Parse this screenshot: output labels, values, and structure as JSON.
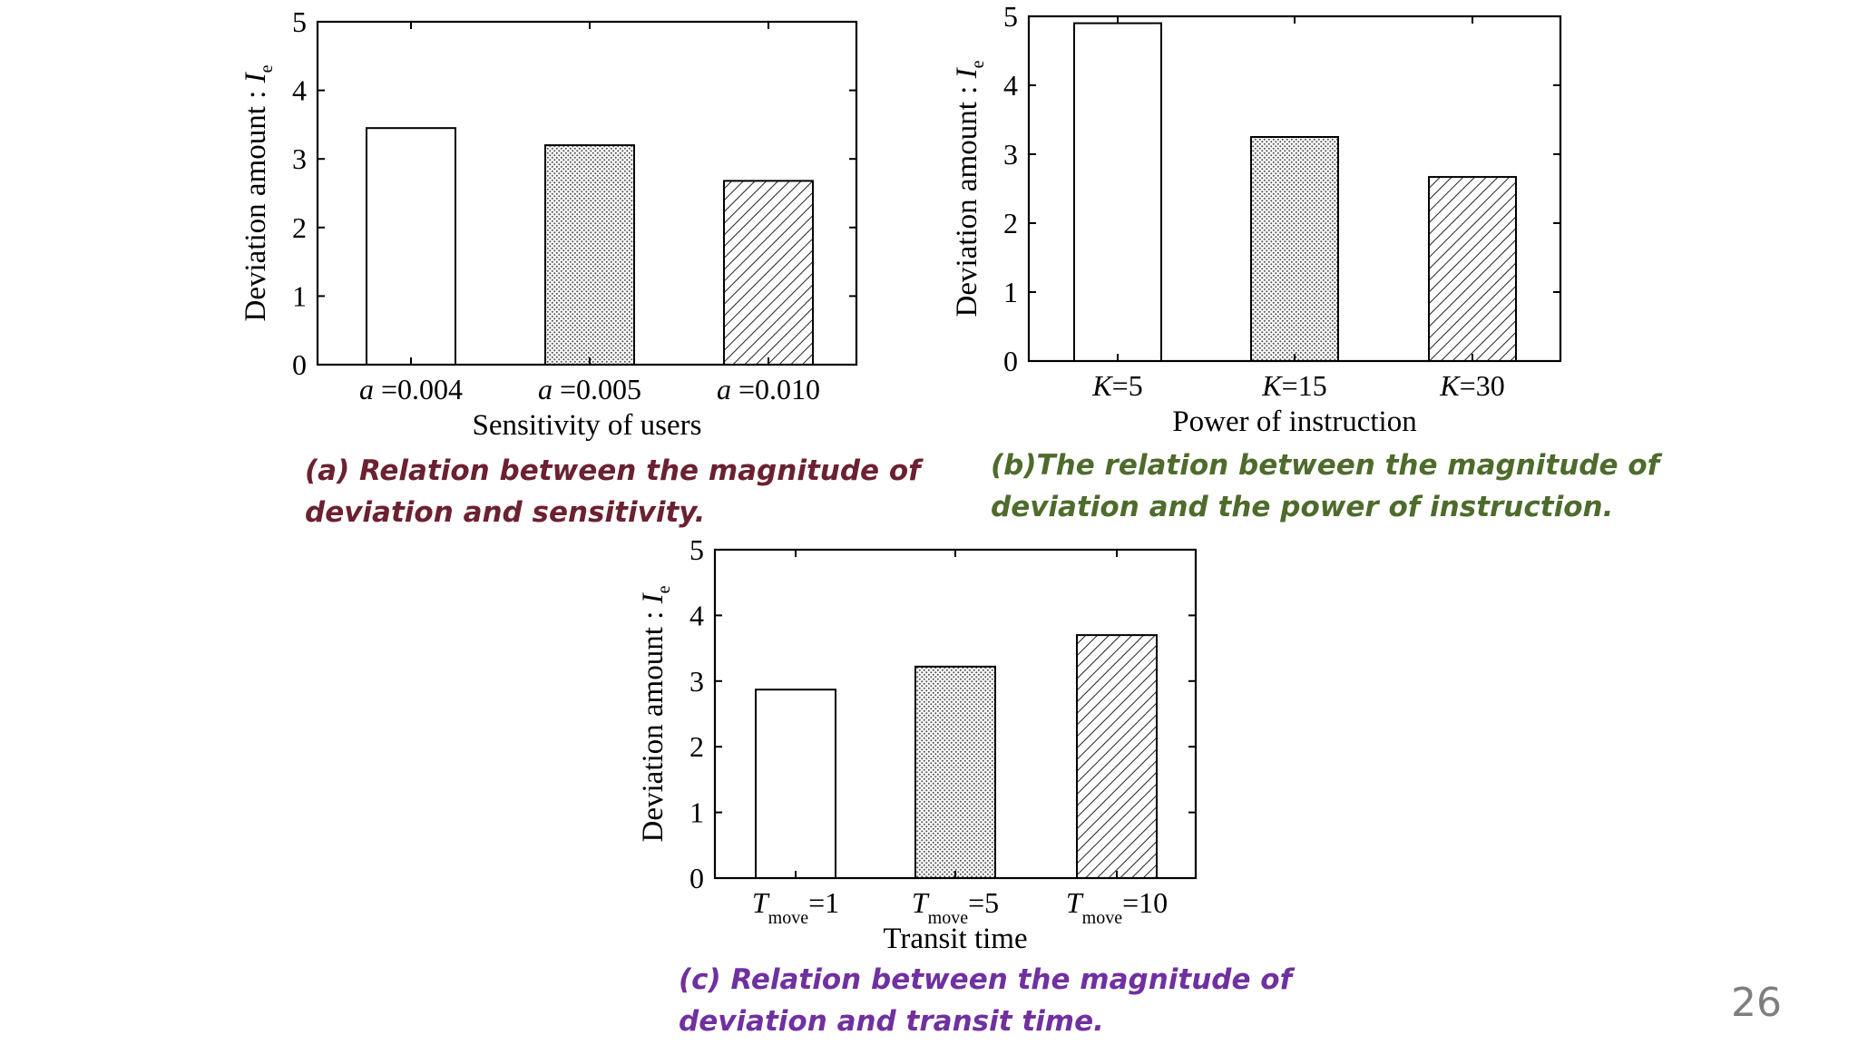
{
  "chart_data": [
    {
      "id": "a",
      "type": "bar",
      "categories": [
        {
          "var": "a",
          "rest": " =0.004"
        },
        {
          "var": "a",
          "rest": " =0.005"
        },
        {
          "var": "a",
          "rest": " =0.010"
        }
      ],
      "values": [
        3.45,
        3.2,
        2.68
      ],
      "patterns": [
        "white",
        "dots",
        "hatch"
      ],
      "xlabel": "Sensitivity of users",
      "ylabel": "Deviation amount : ",
      "ylabel_var": "I",
      "ylabel_sub": "e",
      "ylim": [
        0,
        5
      ],
      "yticks": [
        "0",
        "1",
        "2",
        "3",
        "4",
        "5"
      ],
      "caption_lines": [
        "(a) Relation between the magnitude of",
        "deviation and sensitivity."
      ],
      "caption_color": "#6b2130"
    },
    {
      "id": "b",
      "type": "bar",
      "categories": [
        {
          "var": "K",
          "rest": "=5"
        },
        {
          "var": "K",
          "rest": "=15"
        },
        {
          "var": "K",
          "rest": "=30"
        }
      ],
      "values": [
        4.9,
        3.25,
        2.67
      ],
      "patterns": [
        "white",
        "dots",
        "hatch"
      ],
      "xlabel": "Power of instruction",
      "ylabel": "Deviation amount : ",
      "ylabel_var": "I",
      "ylabel_sub": "e",
      "ylim": [
        0,
        5
      ],
      "yticks": [
        "0",
        "1",
        "2",
        "3",
        "4",
        "5"
      ],
      "caption_lines": [
        "(b)The relation between the magnitude of",
        "deviation and the power of instruction."
      ],
      "caption_color": "#4e6b2c"
    },
    {
      "id": "c",
      "type": "bar",
      "categories": [
        {
          "var": "T",
          "sub": "move",
          "rest": "=1"
        },
        {
          "var": "T",
          "sub": "move",
          "rest": "=5"
        },
        {
          "var": "T",
          "sub": "move",
          "rest": "=10"
        }
      ],
      "values": [
        2.87,
        3.22,
        3.7
      ],
      "patterns": [
        "white",
        "dots",
        "hatch"
      ],
      "xlabel": "Transit time",
      "ylabel": "Deviation amount : ",
      "ylabel_var": "I",
      "ylabel_sub": "e",
      "ylim": [
        0,
        5
      ],
      "yticks": [
        "0",
        "1",
        "2",
        "3",
        "4",
        "5"
      ],
      "caption_lines": [
        "(c) Relation between the magnitude of",
        "deviation and transit time."
      ],
      "caption_color": "#7030a0"
    }
  ],
  "page_number": "26"
}
